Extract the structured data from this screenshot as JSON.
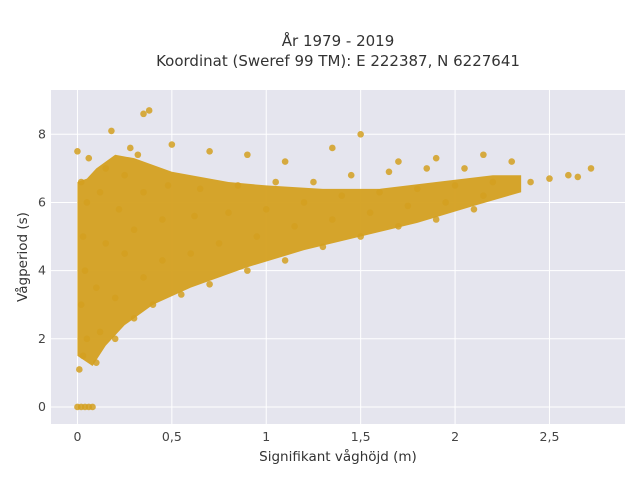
{
  "chart_data": {
    "type": "scatter",
    "title_line1": "År 1979 - 2019",
    "title_line2": "Koordinat (Sweref 99 TM): E 222387, N 6227641",
    "xlabel": "Signifikant våghöjd (m)",
    "ylabel": "Vågperiod (s)",
    "xlim": [
      -0.14,
      2.9
    ],
    "ylim": [
      -0.5,
      9.3
    ],
    "x_ticks": [
      0,
      0.5,
      1,
      1.5,
      2,
      2.5
    ],
    "x_tick_labels": [
      "0",
      "0,5",
      "1",
      "1,5",
      "2",
      "2,5"
    ],
    "y_ticks": [
      0,
      2,
      4,
      6,
      8
    ],
    "y_tick_labels": [
      "0",
      "2",
      "4",
      "6",
      "8"
    ],
    "grid": true,
    "legend": "none",
    "marker_color": "#D4A020",
    "background_color": "#E5E5EE",
    "series": [
      {
        "points": [
          [
            0.0,
            0.0
          ],
          [
            0.02,
            0.0
          ],
          [
            0.04,
            0.0
          ],
          [
            0.06,
            0.0
          ],
          [
            0.08,
            0.0
          ],
          [
            0.01,
            1.1
          ],
          [
            0.03,
            1.5
          ],
          [
            0.05,
            2.0
          ],
          [
            0.02,
            3.0
          ],
          [
            0.04,
            4.0
          ],
          [
            0.03,
            5.0
          ],
          [
            0.05,
            6.0
          ],
          [
            0.02,
            6.6
          ],
          [
            0.0,
            7.5
          ],
          [
            0.06,
            7.3
          ],
          [
            0.1,
            1.3
          ],
          [
            0.12,
            2.2
          ],
          [
            0.1,
            3.5
          ],
          [
            0.15,
            4.8
          ],
          [
            0.12,
            6.3
          ],
          [
            0.15,
            7.0
          ],
          [
            0.2,
            2.0
          ],
          [
            0.2,
            3.2
          ],
          [
            0.25,
            4.5
          ],
          [
            0.22,
            5.8
          ],
          [
            0.25,
            6.8
          ],
          [
            0.28,
            7.6
          ],
          [
            0.18,
            8.1
          ],
          [
            0.3,
            2.6
          ],
          [
            0.35,
            3.8
          ],
          [
            0.3,
            5.2
          ],
          [
            0.35,
            6.3
          ],
          [
            0.32,
            7.4
          ],
          [
            0.35,
            8.6
          ],
          [
            0.38,
            8.7
          ],
          [
            0.4,
            3.0
          ],
          [
            0.45,
            4.3
          ],
          [
            0.45,
            5.5
          ],
          [
            0.48,
            6.5
          ],
          [
            0.5,
            7.7
          ],
          [
            0.55,
            3.3
          ],
          [
            0.6,
            4.5
          ],
          [
            0.62,
            5.6
          ],
          [
            0.65,
            6.4
          ],
          [
            0.7,
            7.5
          ],
          [
            0.7,
            3.6
          ],
          [
            0.75,
            4.8
          ],
          [
            0.8,
            5.7
          ],
          [
            0.85,
            6.5
          ],
          [
            0.9,
            7.4
          ],
          [
            0.9,
            4.0
          ],
          [
            0.95,
            5.0
          ],
          [
            1.0,
            5.8
          ],
          [
            1.05,
            6.6
          ],
          [
            1.1,
            7.2
          ],
          [
            1.1,
            4.3
          ],
          [
            1.15,
            5.3
          ],
          [
            1.2,
            6.0
          ],
          [
            1.25,
            6.6
          ],
          [
            1.35,
            7.6
          ],
          [
            1.3,
            4.7
          ],
          [
            1.35,
            5.5
          ],
          [
            1.4,
            6.2
          ],
          [
            1.45,
            6.8
          ],
          [
            1.5,
            8.0
          ],
          [
            1.5,
            5.0
          ],
          [
            1.55,
            5.7
          ],
          [
            1.6,
            6.3
          ],
          [
            1.65,
            6.9
          ],
          [
            1.7,
            7.2
          ],
          [
            1.7,
            5.3
          ],
          [
            1.75,
            5.9
          ],
          [
            1.8,
            6.4
          ],
          [
            1.85,
            7.0
          ],
          [
            1.9,
            7.3
          ],
          [
            1.9,
            5.5
          ],
          [
            1.95,
            6.0
          ],
          [
            2.0,
            6.5
          ],
          [
            2.05,
            7.0
          ],
          [
            2.15,
            7.4
          ],
          [
            2.1,
            5.8
          ],
          [
            2.15,
            6.2
          ],
          [
            2.2,
            6.6
          ],
          [
            2.3,
            7.2
          ],
          [
            2.4,
            6.6
          ],
          [
            2.5,
            6.7
          ],
          [
            2.6,
            6.8
          ],
          [
            2.65,
            6.75
          ],
          [
            2.72,
            7.0
          ]
        ]
      }
    ]
  }
}
